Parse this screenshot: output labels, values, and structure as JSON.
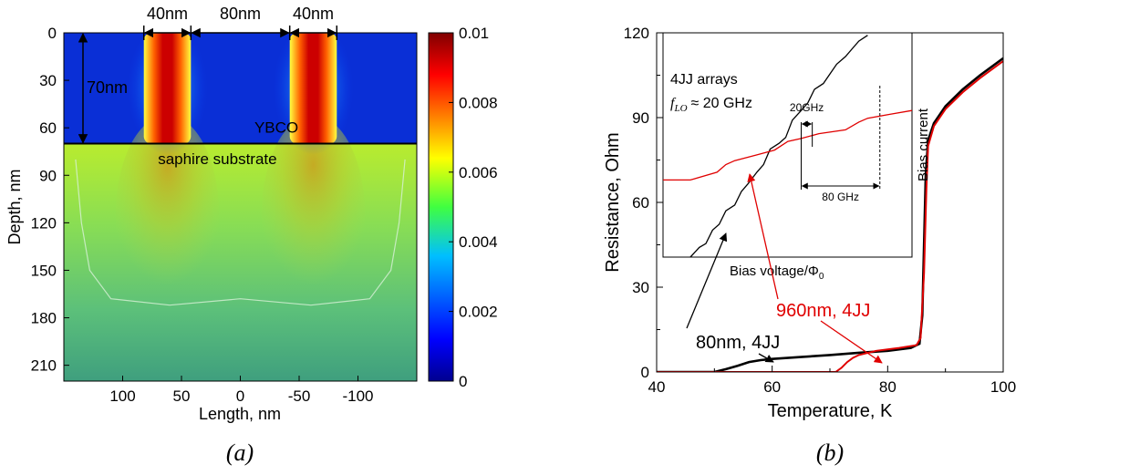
{
  "chart_data": [
    {
      "panel": "(a)",
      "type": "heatmap",
      "xlabel": "Length, nm",
      "ylabel": "Depth, nm",
      "xlim": [
        150,
        -150
      ],
      "ylim": [
        0,
        220
      ],
      "x_ticks": [
        "100",
        "50",
        "0",
        "-50",
        "-100"
      ],
      "x_tick_values": [
        100,
        50,
        0,
        -50,
        -100
      ],
      "y_ticks": [
        "0",
        "30",
        "60",
        "90",
        "120",
        "150",
        "180",
        "210"
      ],
      "y_tick_values": [
        0,
        30,
        60,
        90,
        120,
        150,
        180,
        210
      ],
      "colorbar": {
        "ticks": [
          "0",
          "0.002",
          "0.004",
          "0.006",
          "0.008",
          "0.01"
        ],
        "values": [
          0,
          0.002,
          0.004,
          0.006,
          0.008,
          0.01
        ],
        "colors": [
          "#00008f",
          "#0000ff",
          "#00bfff",
          "#40ff40",
          "#ffff00",
          "#ff8000",
          "#ff0000",
          "#800000"
        ]
      },
      "interface_depth": 70,
      "strips": [
        {
          "center": 62,
          "width": 40
        },
        {
          "center": -62,
          "width": 40
        }
      ],
      "annotations": {
        "width_left": "40nm",
        "gap": "80nm",
        "width_right": "40nm",
        "thickness": "70nm",
        "film": "YBCO",
        "substrate": "saphire substrate"
      }
    },
    {
      "panel": "(b)",
      "type": "line",
      "xlabel": "Temperature, K",
      "ylabel": "Resistance, Ohm",
      "xlim": [
        40,
        100
      ],
      "ylim": [
        0,
        120
      ],
      "x_ticks": [
        "40",
        "60",
        "80",
        "100"
      ],
      "x_tick_values": [
        40,
        60,
        80,
        100
      ],
      "y_ticks": [
        "0",
        "30",
        "60",
        "90",
        "120"
      ],
      "y_tick_values": [
        0,
        30,
        60,
        90,
        120
      ],
      "series": [
        {
          "name": "80nm, 4JJ",
          "color": "#000000",
          "x": [
            50,
            52,
            54,
            56,
            58,
            60,
            65,
            70,
            75,
            80,
            84,
            85.5,
            86,
            86.3,
            86.6,
            87,
            88,
            90,
            93,
            96,
            100
          ],
          "y": [
            0,
            1,
            2.2,
            3.5,
            4.2,
            4.6,
            5.3,
            6,
            6.8,
            7.5,
            8.5,
            10,
            20,
            45,
            70,
            82,
            88,
            94,
            100,
            105,
            111
          ]
        },
        {
          "name": "960nm, 4JJ",
          "color": "#e00000",
          "x": [
            71,
            72,
            73,
            74,
            75,
            78,
            82,
            85,
            85.7,
            86.3,
            86.7,
            87,
            88,
            90,
            93,
            96,
            100
          ],
          "y": [
            0,
            1.5,
            3.5,
            5,
            6,
            7.5,
            8.5,
            9.5,
            12,
            35,
            65,
            80,
            87,
            93,
            99,
            104,
            110
          ]
        }
      ],
      "inset": {
        "title_line1": "4JJ arrays",
        "flo_symbol": "f",
        "flo_subscript": "LO",
        "flo_value": "≈ 20 GHz",
        "xlabel": "Bias voltage/Φ",
        "xlabel_subscript": "0",
        "ylabel": "Bias current",
        "step_small": "20GHz",
        "step_large": "80 GHz",
        "black_iv": {
          "v": [
            0,
            0.04,
            0.07,
            0.1,
            0.13,
            0.16,
            0.2,
            0.23,
            0.26,
            0.3,
            0.33,
            0.36,
            0.4,
            0.43,
            0.46,
            0.5,
            0.53,
            0.56,
            0.6,
            0.63,
            0.66,
            0.7,
            0.73,
            0.76,
            0.8
          ],
          "i": [
            0,
            0.05,
            0.07,
            0.14,
            0.17,
            0.24,
            0.27,
            0.34,
            0.38,
            0.44,
            0.48,
            0.56,
            0.59,
            0.62,
            0.71,
            0.76,
            0.8,
            0.87,
            0.9,
            0.95,
            1,
            1.04,
            1.08,
            1.12,
            1.15
          ]
        },
        "red_iv": {
          "v": [
            0,
            0.12,
            0.16,
            0.2,
            0.3,
            0.38,
            0.44,
            0.5,
            0.58,
            0.7,
            0.76,
            0.8,
            0.9,
            1.0
          ],
          "i": [
            0.4,
            0.44,
            0.48,
            0.5,
            0.53,
            0.555,
            0.6,
            0.615,
            0.64,
            0.66,
            0.7,
            0.72,
            0.74,
            0.76
          ]
        }
      }
    }
  ],
  "captions": {
    "a": "(a)",
    "b": "(b)"
  }
}
